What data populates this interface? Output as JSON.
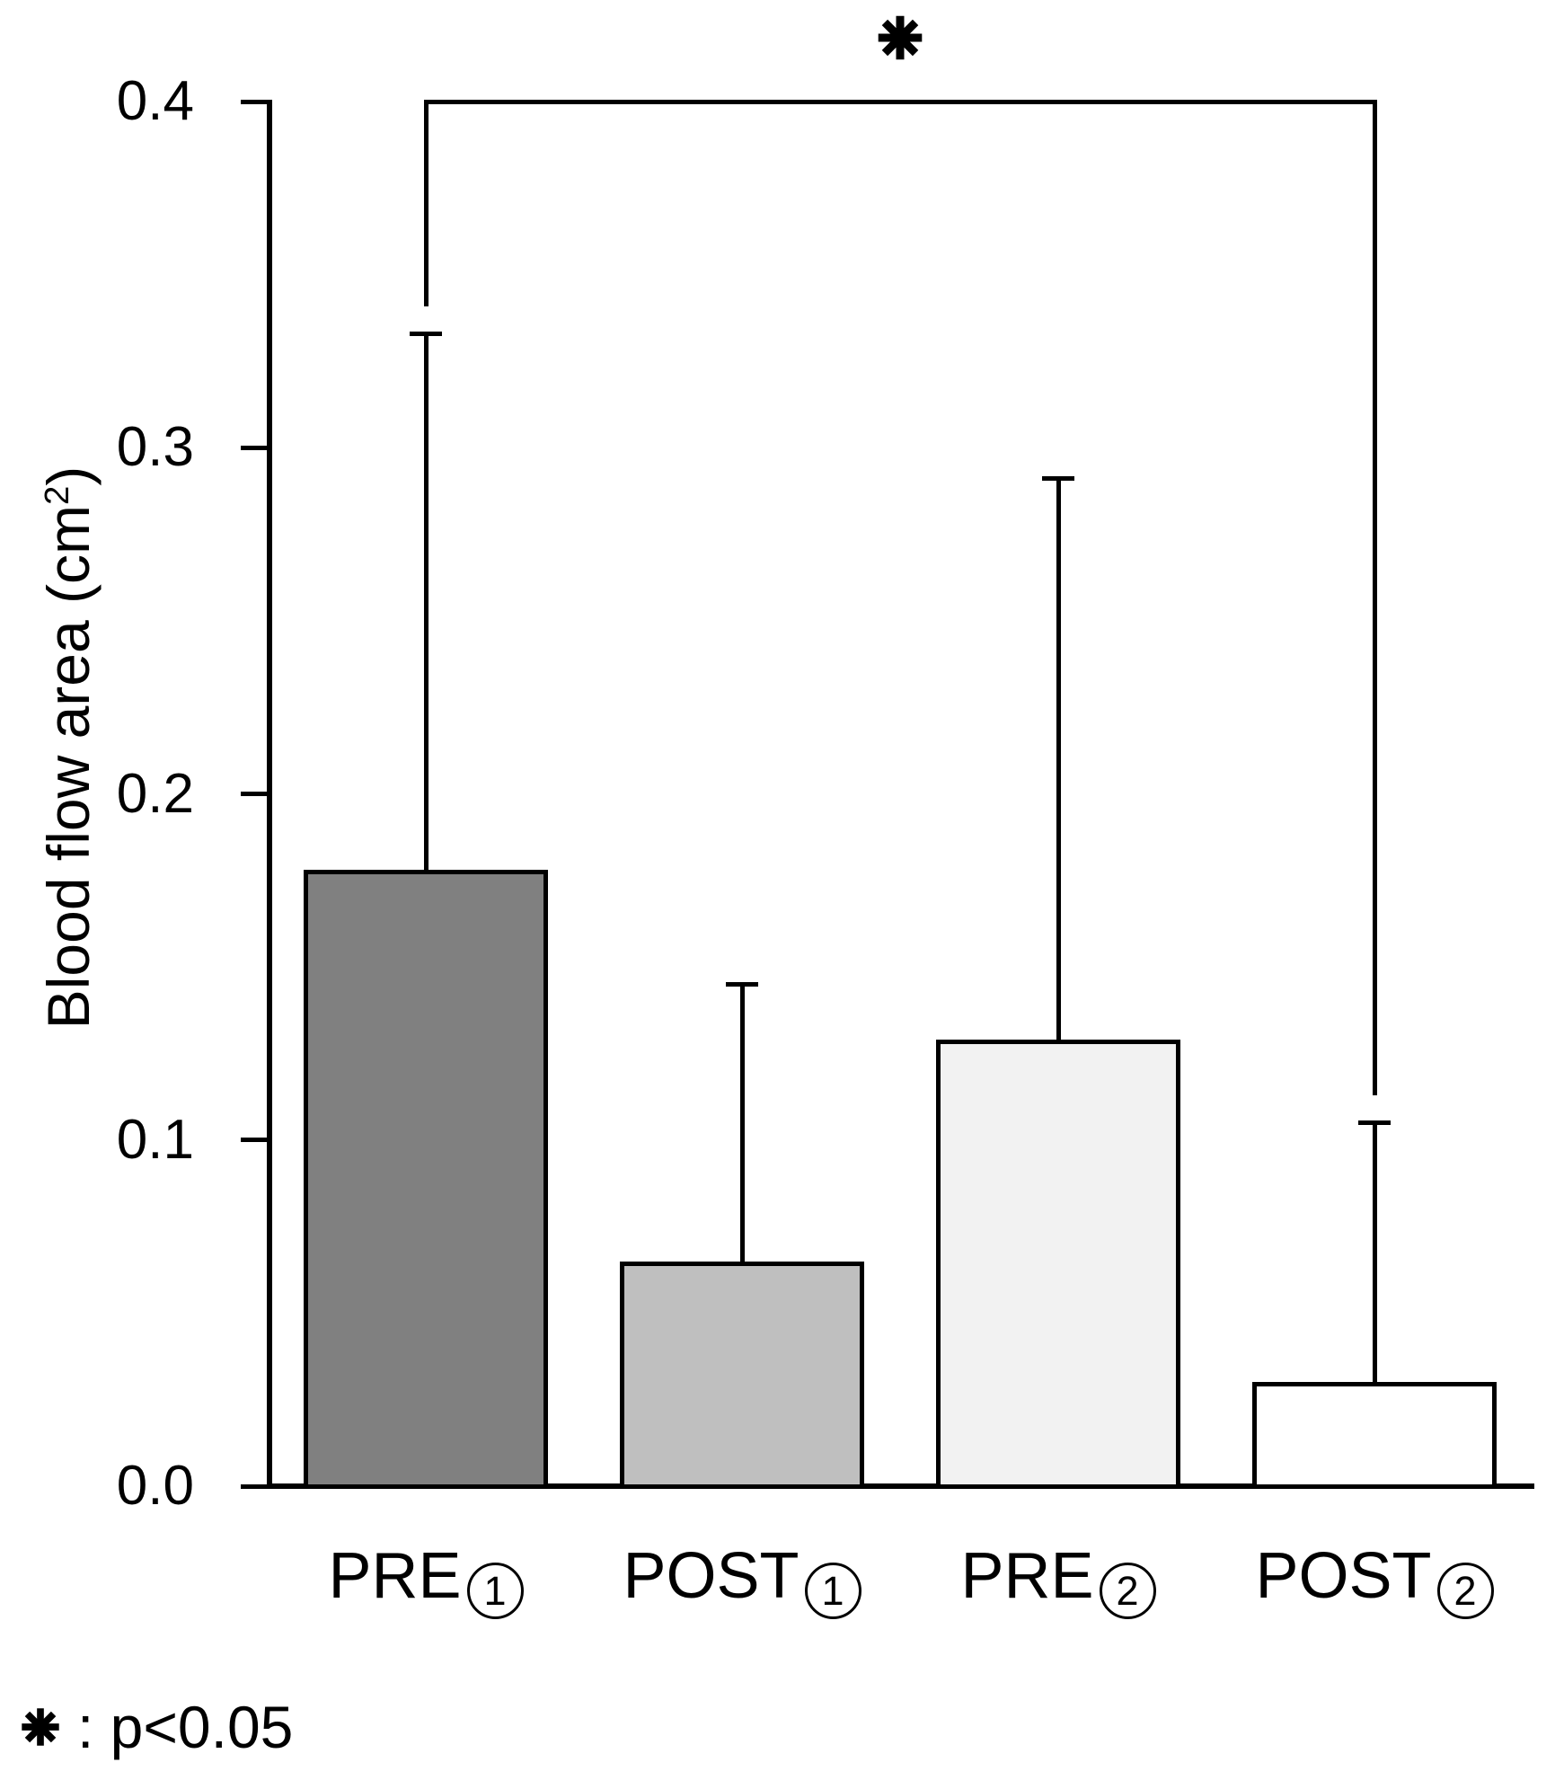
{
  "figure": {
    "background": "#ffffff",
    "ink_color": "#000000"
  },
  "y_axis": {
    "title_full": "Blood flow area (cm²)",
    "title_pre": "Blood flow area (cm",
    "title_sup": "2",
    "title_post": ")",
    "tick_labels": [
      "0.0",
      "0.1",
      "0.2",
      "0.3",
      "0.4"
    ]
  },
  "x_axis": {
    "labels": [
      {
        "prefix": "PRE",
        "circled_number": "1"
      },
      {
        "prefix": "POST",
        "circled_number": "1"
      },
      {
        "prefix": "PRE",
        "circled_number": "2"
      },
      {
        "prefix": "POST",
        "circled_number": "2"
      }
    ]
  },
  "significance": {
    "marker": "*",
    "spans_from": "PRE①",
    "spans_to": "POST②"
  },
  "footnote": {
    "marker": "*",
    "text": ": p<0.05"
  },
  "chart_data": {
    "type": "bar",
    "title": "",
    "xlabel": "",
    "ylabel": "Blood flow area (cm²)",
    "ylim": [
      0,
      0.4
    ],
    "yticks": [
      0,
      0.1,
      0.2,
      0.3,
      0.4
    ],
    "grid": false,
    "legend_position": "none",
    "categories": [
      "PRE①",
      "POST①",
      "PRE②",
      "POST②"
    ],
    "values": [
      0.178,
      0.065,
      0.129,
      0.03
    ],
    "error_upper": [
      0.333,
      0.145,
      0.291,
      0.105
    ],
    "bar_fill_colors": [
      "#808080",
      "#bfbfbf",
      "#f2f2f2",
      "#ffffff"
    ],
    "bar_edge_color": "#000000",
    "significance_bracket": {
      "from_index": 0,
      "to_index": 3,
      "marker": "*",
      "label": "p<0.05"
    }
  }
}
